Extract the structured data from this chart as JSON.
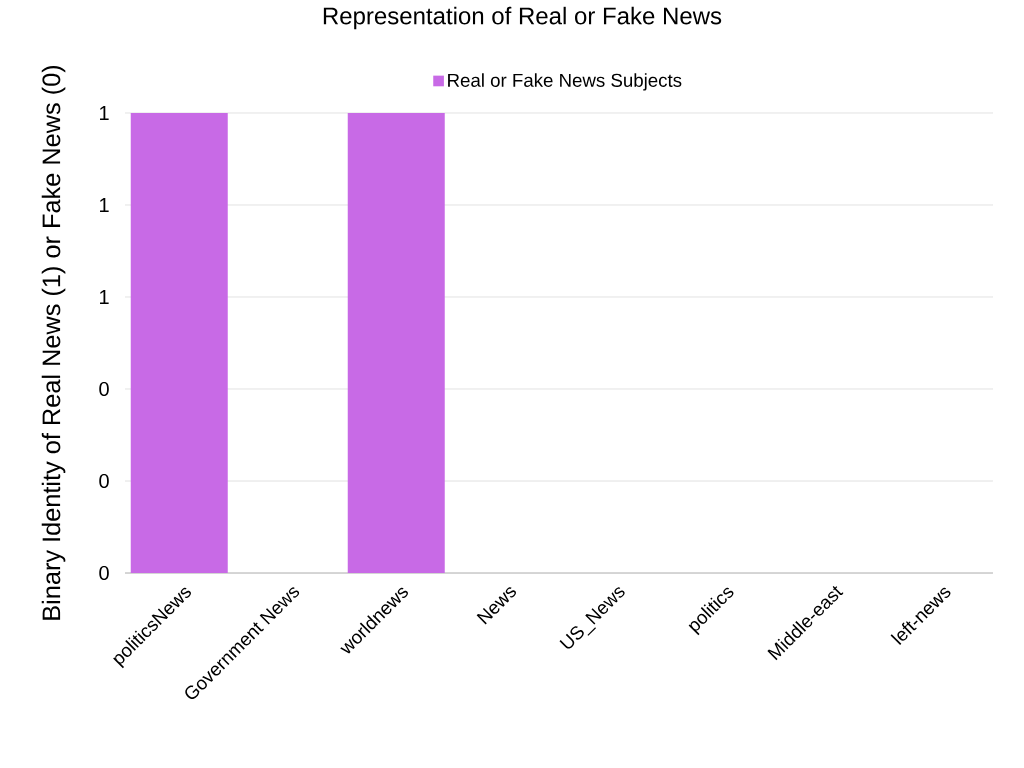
{
  "chart_data": {
    "type": "bar",
    "title": "Representation of Real or Fake News",
    "ylabel": "Binary Identity of Real News (1) or Fake News (0)",
    "categories": [
      "politicsNews",
      "Government News",
      "worldnews",
      "News",
      "US_News",
      "politics",
      "Middle-east",
      "left-news"
    ],
    "series": [
      {
        "name": "Real or Fake News Subjects",
        "color": "#c86ae6",
        "values": [
          1,
          0,
          1,
          0,
          0,
          0,
          0,
          0
        ]
      }
    ],
    "ylim": [
      0,
      1
    ],
    "yticks": [
      {
        "value": 0,
        "label": "0"
      },
      {
        "value": 0.2,
        "label": "0"
      },
      {
        "value": 0.4,
        "label": "0"
      },
      {
        "value": 0.6,
        "label": "1"
      },
      {
        "value": 0.8,
        "label": "1"
      },
      {
        "value": 1,
        "label": "1"
      }
    ],
    "grid": "y",
    "legend": "top"
  }
}
